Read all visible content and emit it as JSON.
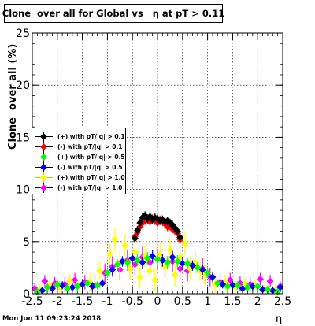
{
  "title": "Clone  over all for Global vs   η at pT > 0.11",
  "ylabel": "Clone  over all (%)",
  "xlabel": "η",
  "timestamp": "Mon Jun 11 09:23:24 2018",
  "chart_data": {
    "type": "scatter",
    "xlim": [
      -2.5,
      2.5
    ],
    "ylim": [
      0,
      25
    ],
    "x_ticks": [
      "-2.5",
      "-2",
      "-1.5",
      "-1",
      "-0.5",
      "0",
      "0.5",
      "1",
      "1.5",
      "2",
      "2.5"
    ],
    "y_ticks": [
      "0",
      "5",
      "10",
      "15",
      "20",
      "25"
    ],
    "grid": true,
    "legend_position": "left-middle",
    "series": [
      {
        "name": "(+) with pT/|q| > 0.1",
        "color": "#000000",
        "x": [
          -0.45,
          -0.4,
          -0.35,
          -0.3,
          -0.25,
          -0.2,
          -0.15,
          -0.1,
          -0.05,
          0,
          0.05,
          0.1,
          0.15,
          0.2,
          0.25,
          0.3,
          0.35,
          0.4,
          0.45
        ],
        "y": [
          5.3,
          6.1,
          6.8,
          7.3,
          7.5,
          7.2,
          7.4,
          7.1,
          7.3,
          7.2,
          7.0,
          7.1,
          6.9,
          7.0,
          6.8,
          6.6,
          6.3,
          6.0,
          5.4
        ],
        "err": [
          0.4,
          0.4,
          0.4,
          0.4,
          0.4,
          0.4,
          0.4,
          0.4,
          0.4,
          0.4,
          0.4,
          0.4,
          0.4,
          0.4,
          0.4,
          0.4,
          0.4,
          0.4,
          0.4
        ]
      },
      {
        "name": "(-) with pT/|q| > 0.1",
        "color": "#ff0000",
        "x": [
          -0.45,
          -0.4,
          -0.35,
          -0.3,
          -0.25,
          -0.2,
          -0.15,
          -0.1,
          -0.05,
          0,
          0.05,
          0.1,
          0.15,
          0.2,
          0.25,
          0.3,
          0.35,
          0.4,
          0.45
        ],
        "y": [
          5.5,
          5.9,
          6.4,
          6.8,
          7.0,
          7.1,
          6.9,
          7.2,
          7.0,
          6.8,
          7.1,
          6.9,
          6.7,
          6.4,
          6.5,
          6.2,
          6.0,
          5.8,
          5.2
        ],
        "err": [
          0.4,
          0.4,
          0.4,
          0.4,
          0.4,
          0.4,
          0.4,
          0.4,
          0.4,
          0.4,
          0.4,
          0.4,
          0.4,
          0.4,
          0.4,
          0.4,
          0.4,
          0.4,
          0.4
        ]
      },
      {
        "name": "(+) with pT/|q| > 0.5",
        "color": "#00ff00",
        "x": [
          -2.4,
          -2.2,
          -2.0,
          -1.8,
          -1.6,
          -1.4,
          -1.2,
          -1.0,
          -0.8,
          -0.6,
          -0.4,
          -0.2,
          0,
          0.2,
          0.4,
          0.6,
          0.8,
          1.0,
          1.2,
          1.4,
          1.6,
          1.8,
          2.0,
          2.2,
          2.4
        ],
        "y": [
          0.2,
          0.6,
          0.9,
          0.5,
          0.7,
          1.0,
          0.8,
          2.0,
          2.8,
          3.0,
          3.2,
          3.4,
          3.3,
          3.0,
          3.1,
          2.9,
          2.5,
          2.0,
          1.0,
          0.7,
          0.8,
          0.6,
          0.7,
          0.4,
          0.2
        ],
        "err": [
          0.3,
          0.4,
          0.4,
          0.4,
          0.4,
          0.4,
          0.4,
          0.5,
          0.5,
          0.5,
          0.6,
          0.6,
          0.6,
          0.6,
          0.6,
          0.5,
          0.5,
          0.5,
          0.4,
          0.4,
          0.4,
          0.4,
          0.4,
          0.4,
          0.3
        ]
      },
      {
        "name": "(-) with pT/|q| > 0.5",
        "color": "#0000ff",
        "x": [
          -2.3,
          -2.1,
          -1.9,
          -1.7,
          -1.5,
          -1.3,
          -1.1,
          -0.9,
          -0.7,
          -0.5,
          -0.3,
          -0.1,
          0.1,
          0.3,
          0.5,
          0.7,
          0.9,
          1.1,
          1.3,
          1.5,
          1.7,
          1.9,
          2.1,
          2.3,
          2.45
        ],
        "y": [
          0.3,
          0.5,
          0.8,
          0.6,
          0.9,
          0.7,
          1.0,
          2.3,
          3.1,
          3.4,
          3.0,
          3.6,
          3.2,
          3.5,
          2.9,
          2.7,
          2.3,
          1.6,
          0.9,
          0.8,
          0.5,
          0.7,
          0.4,
          0.3,
          0.6
        ],
        "err": [
          0.3,
          0.4,
          0.4,
          0.4,
          0.4,
          0.4,
          0.4,
          0.5,
          0.5,
          0.5,
          0.6,
          0.6,
          0.6,
          0.6,
          0.6,
          0.5,
          0.5,
          0.5,
          0.4,
          0.4,
          0.4,
          0.4,
          0.4,
          0.4,
          0.3
        ]
      },
      {
        "name": "(+) with pT/|q| > 1.0",
        "color": "#ffff00",
        "x": [
          -2.35,
          -2.15,
          -1.95,
          -1.75,
          -1.55,
          -1.35,
          -1.15,
          -0.95,
          -0.85,
          -0.75,
          -0.65,
          -0.55,
          -0.45,
          -0.35,
          -0.25,
          -0.15,
          -0.05,
          0.05,
          0.15,
          0.25,
          0.35,
          0.45,
          0.55,
          0.65,
          0.75,
          0.85,
          0.95,
          1.15,
          1.35,
          1.55,
          1.75,
          1.95,
          2.15,
          2.35
        ],
        "y": [
          0.4,
          0.8,
          0.6,
          1.2,
          0.9,
          1.1,
          2.2,
          3.8,
          5.2,
          3.0,
          4.6,
          2.4,
          4.0,
          1.6,
          3.6,
          2.2,
          1.3,
          3.8,
          2.6,
          4.2,
          1.8,
          3.5,
          4.8,
          2.4,
          3.0,
          2.2,
          1.8,
          0.9,
          1.1,
          0.7,
          0.9,
          0.8,
          0.5,
          0.3
        ],
        "err": [
          0.5,
          0.6,
          0.6,
          0.7,
          0.7,
          0.8,
          0.9,
          1.0,
          1.1,
          1.1,
          1.1,
          1.1,
          1.1,
          1.1,
          1.1,
          1.1,
          1.1,
          1.1,
          1.1,
          1.1,
          1.1,
          1.1,
          1.1,
          1.1,
          1.1,
          1.0,
          0.9,
          0.8,
          0.7,
          0.6,
          0.6,
          0.6,
          0.5,
          0.5
        ]
      },
      {
        "name": "(-) with pT/|q| > 1.0",
        "color": "#ff00ff",
        "x": [
          -2.45,
          -2.25,
          -2.05,
          -1.85,
          -1.65,
          -1.45,
          -1.25,
          -1.05,
          -0.9,
          -0.75,
          -0.6,
          -0.45,
          -0.3,
          -0.15,
          0,
          0.15,
          0.3,
          0.45,
          0.6,
          0.75,
          0.9,
          1.05,
          1.25,
          1.45,
          1.65,
          1.85,
          2.05,
          2.25,
          2.45
        ],
        "y": [
          0.5,
          1.2,
          1.0,
          0.9,
          1.3,
          1.1,
          0.8,
          2.0,
          2.6,
          2.3,
          3.2,
          2.8,
          3.5,
          3.0,
          3.3,
          2.6,
          3.1,
          2.4,
          2.2,
          2.9,
          2.4,
          1.6,
          1.1,
          1.3,
          1.0,
          0.9,
          1.4,
          1.2,
          0.7
        ],
        "err": [
          0.5,
          0.6,
          0.6,
          0.7,
          0.7,
          0.7,
          0.8,
          0.9,
          1.0,
          1.0,
          1.0,
          1.0,
          1.0,
          1.0,
          1.0,
          1.0,
          1.0,
          1.0,
          1.0,
          1.0,
          1.0,
          0.9,
          0.8,
          0.7,
          0.7,
          0.7,
          0.6,
          0.6,
          0.5
        ]
      }
    ]
  }
}
